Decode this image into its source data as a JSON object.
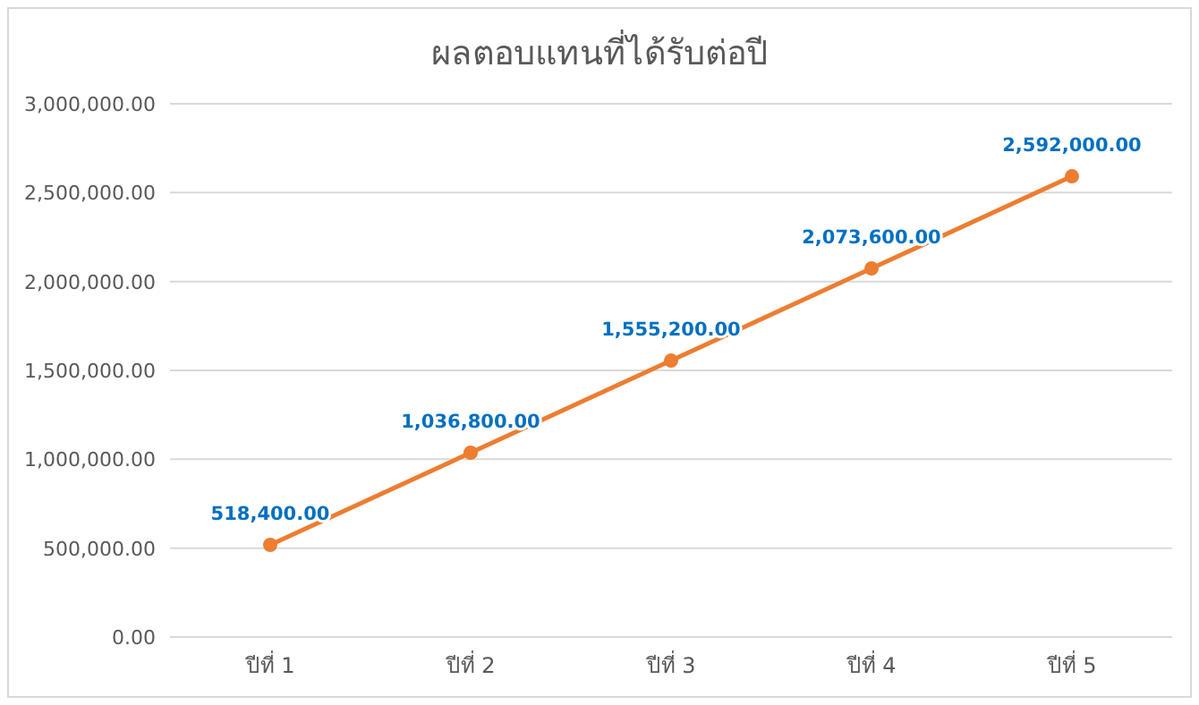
{
  "chart_data": {
    "type": "line",
    "title": "ผลตอบแทนที่ได้รับต่อปี",
    "categories": [
      "ปีที่ 1",
      "ปีที่ 2",
      "ปีที่ 3",
      "ปีที่ 4",
      "ปีที่ 5"
    ],
    "series": [
      {
        "color": "#ed7d31",
        "values": [
          518400,
          1036800,
          1555200,
          2073600,
          2592000
        ],
        "value_labels": [
          "518,400.00",
          "1,036,800.00",
          "1,555,200.00",
          "2,073,600.00",
          "2,592,000.00"
        ]
      }
    ],
    "ylim": [
      0,
      3000000
    ],
    "yticks": [
      {
        "value": 0,
        "label": "0.00"
      },
      {
        "value": 500000,
        "label": "500,000.00"
      },
      {
        "value": 1000000,
        "label": "1,000,000.00"
      },
      {
        "value": 1500000,
        "label": "1,500,000.00"
      },
      {
        "value": 2000000,
        "label": "2,000,000.00"
      },
      {
        "value": 2500000,
        "label": "2,500,000.00"
      },
      {
        "value": 3000000,
        "label": "3,000,000.00"
      }
    ],
    "grid": "y",
    "marker": "circle",
    "line_style": "solid"
  }
}
